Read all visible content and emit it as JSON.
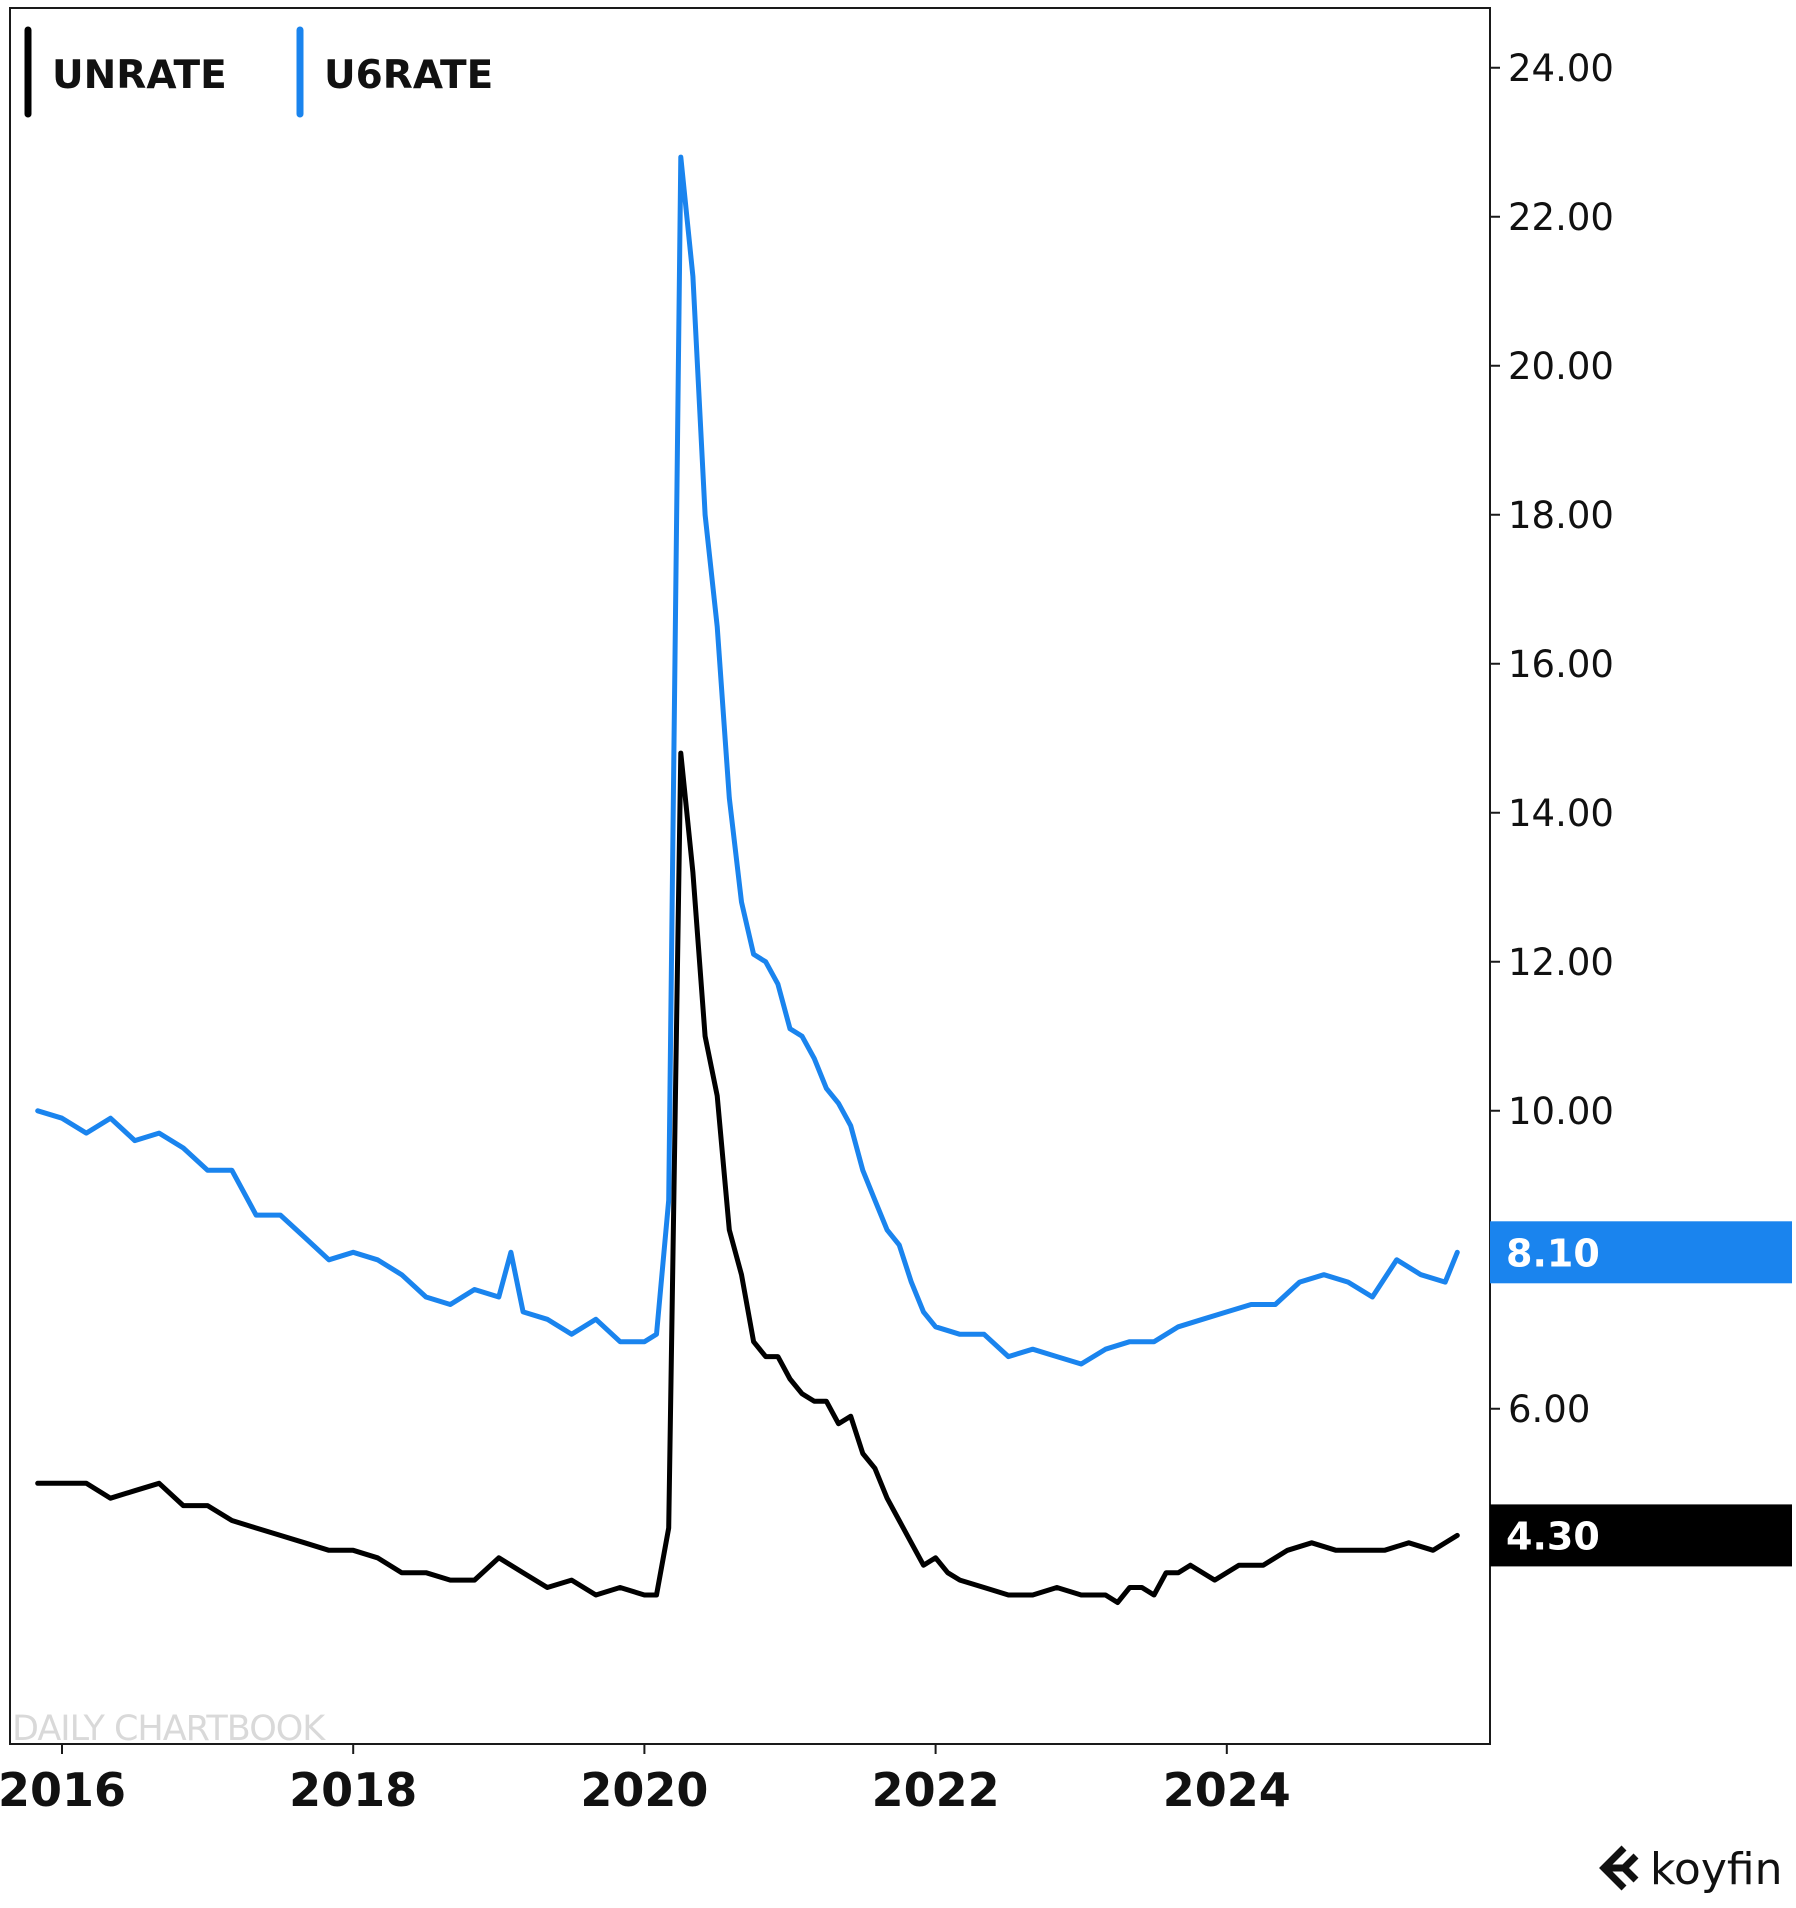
{
  "chart_data": {
    "type": "line",
    "title": "",
    "xlabel": "",
    "ylabel": "",
    "x_ticks": [
      "2016",
      "2018",
      "2020",
      "2022",
      "2024"
    ],
    "y_ticks": [
      "6.00",
      "10.00",
      "12.00",
      "14.00",
      "16.00",
      "18.00",
      "20.00",
      "22.00",
      "24.00"
    ],
    "ylim": [
      1.5,
      25.0
    ],
    "xlim": [
      "2015-11",
      "2025-12"
    ],
    "grid": false,
    "legend_position": "top-left",
    "series": [
      {
        "name": "UNRATE",
        "color": "#000000",
        "last_value_label": "4.30",
        "x": [
          "2015-11",
          "2016-01",
          "2016-03",
          "2016-05",
          "2016-07",
          "2016-09",
          "2016-11",
          "2017-01",
          "2017-03",
          "2017-05",
          "2017-07",
          "2017-09",
          "2017-11",
          "2018-01",
          "2018-03",
          "2018-05",
          "2018-07",
          "2018-09",
          "2018-11",
          "2019-01",
          "2019-03",
          "2019-05",
          "2019-07",
          "2019-09",
          "2019-11",
          "2020-01",
          "2020-02",
          "2020-03",
          "2020-04",
          "2020-05",
          "2020-06",
          "2020-07",
          "2020-08",
          "2020-09",
          "2020-10",
          "2020-11",
          "2020-12",
          "2021-01",
          "2021-02",
          "2021-03",
          "2021-04",
          "2021-05",
          "2021-06",
          "2021-07",
          "2021-08",
          "2021-09",
          "2021-10",
          "2021-11",
          "2021-12",
          "2022-01",
          "2022-02",
          "2022-03",
          "2022-05",
          "2022-07",
          "2022-09",
          "2022-11",
          "2023-01",
          "2023-03",
          "2023-04",
          "2023-05",
          "2023-06",
          "2023-07",
          "2023-08",
          "2023-09",
          "2023-10",
          "2023-12",
          "2024-02",
          "2024-04",
          "2024-06",
          "2024-08",
          "2024-10",
          "2024-12",
          "2025-02",
          "2025-04",
          "2025-06",
          "2025-08"
        ],
        "values": [
          5.0,
          5.0,
          5.0,
          4.8,
          4.9,
          5.0,
          4.7,
          4.7,
          4.5,
          4.4,
          4.3,
          4.2,
          4.1,
          4.1,
          4.0,
          3.8,
          3.8,
          3.7,
          3.7,
          4.0,
          3.8,
          3.6,
          3.7,
          3.5,
          3.6,
          3.5,
          3.5,
          4.4,
          14.8,
          13.2,
          11.0,
          10.2,
          8.4,
          7.8,
          6.9,
          6.7,
          6.7,
          6.4,
          6.2,
          6.1,
          6.1,
          5.8,
          5.9,
          5.4,
          5.2,
          4.8,
          4.5,
          4.2,
          3.9,
          4.0,
          3.8,
          3.7,
          3.6,
          3.5,
          3.5,
          3.6,
          3.5,
          3.5,
          3.4,
          3.6,
          3.6,
          3.5,
          3.8,
          3.8,
          3.9,
          3.7,
          3.9,
          3.9,
          4.1,
          4.2,
          4.1,
          4.1,
          4.1,
          4.2,
          4.1,
          4.3
        ]
      },
      {
        "name": "U6RATE",
        "color": "#1a84ee",
        "last_value_label": "8.10",
        "x": [
          "2015-11",
          "2016-01",
          "2016-03",
          "2016-05",
          "2016-07",
          "2016-09",
          "2016-11",
          "2017-01",
          "2017-03",
          "2017-05",
          "2017-07",
          "2017-09",
          "2017-11",
          "2018-01",
          "2018-03",
          "2018-05",
          "2018-07",
          "2018-09",
          "2018-11",
          "2019-01",
          "2019-02",
          "2019-03",
          "2019-05",
          "2019-07",
          "2019-09",
          "2019-11",
          "2020-01",
          "2020-02",
          "2020-03",
          "2020-04",
          "2020-05",
          "2020-06",
          "2020-07",
          "2020-08",
          "2020-09",
          "2020-10",
          "2020-11",
          "2020-12",
          "2021-01",
          "2021-02",
          "2021-03",
          "2021-04",
          "2021-05",
          "2021-06",
          "2021-07",
          "2021-08",
          "2021-09",
          "2021-10",
          "2021-11",
          "2021-12",
          "2022-01",
          "2022-03",
          "2022-05",
          "2022-07",
          "2022-09",
          "2022-11",
          "2023-01",
          "2023-03",
          "2023-05",
          "2023-07",
          "2023-09",
          "2023-11",
          "2024-01",
          "2024-03",
          "2024-05",
          "2024-07",
          "2024-09",
          "2024-11",
          "2025-01",
          "2025-03",
          "2025-05",
          "2025-07",
          "2025-08"
        ],
        "values": [
          10.0,
          9.9,
          9.7,
          9.9,
          9.6,
          9.7,
          9.5,
          9.2,
          9.2,
          8.6,
          8.6,
          8.3,
          8.0,
          8.1,
          8.0,
          7.8,
          7.5,
          7.4,
          7.6,
          7.5,
          8.1,
          7.3,
          7.2,
          7.0,
          7.2,
          6.9,
          6.9,
          7.0,
          8.8,
          22.8,
          21.2,
          18.0,
          16.5,
          14.2,
          12.8,
          12.1,
          12.0,
          11.7,
          11.1,
          11.0,
          10.7,
          10.3,
          10.1,
          9.8,
          9.2,
          8.8,
          8.4,
          8.2,
          7.7,
          7.3,
          7.1,
          7.0,
          7.0,
          6.7,
          6.8,
          6.7,
          6.6,
          6.8,
          6.9,
          6.9,
          7.1,
          7.2,
          7.3,
          7.4,
          7.4,
          7.7,
          7.8,
          7.7,
          7.5,
          8.0,
          7.8,
          7.7,
          8.1
        ]
      }
    ],
    "watermark": "DAILY CHARTBOOK",
    "brand": "koyfin"
  }
}
